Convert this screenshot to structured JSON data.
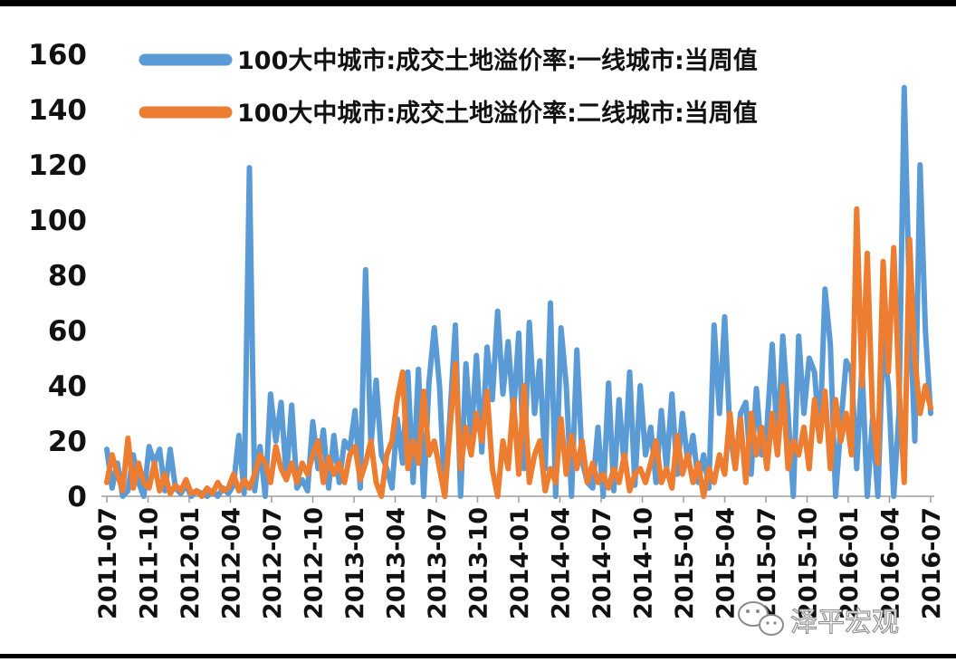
{
  "chart_data": {
    "type": "line",
    "title": "",
    "xlabel": "",
    "ylabel": "",
    "ylim": [
      0,
      160
    ],
    "y_ticks": [
      "0",
      "20",
      "40",
      "60",
      "80",
      "100",
      "120",
      "140",
      "160"
    ],
    "x_tick_labels": [
      "2011-07",
      "2011-10",
      "2012-01",
      "2012-04",
      "2012-07",
      "2012-10",
      "2013-01",
      "2013-04",
      "2013-07",
      "2013-10",
      "2014-01",
      "2014-04",
      "2014-07",
      "2014-10",
      "2015-01",
      "2015-04",
      "2015-07",
      "2015-10",
      "2016-01",
      "2016-04",
      "2016-07"
    ],
    "x_start": "2011-07",
    "x_end": "2016-07",
    "legend_position": "top-left",
    "grid": false,
    "series": [
      {
        "name": "100大中城市:成交土地溢价率:一线城市:当周值",
        "color": "#5b9bd5",
        "points": [
          [
            0,
            17
          ],
          [
            0.5,
            3
          ],
          [
            1,
            12
          ],
          [
            1.5,
            0
          ],
          [
            2,
            2
          ],
          [
            2.5,
            15
          ],
          [
            3,
            5
          ],
          [
            3.5,
            0
          ],
          [
            4,
            18
          ],
          [
            4.5,
            12
          ],
          [
            5,
            17
          ],
          [
            5.5,
            2
          ],
          [
            6,
            17
          ],
          [
            6.5,
            3
          ],
          [
            7,
            1
          ],
          [
            7.5,
            4
          ],
          [
            8,
            0
          ],
          [
            8.5,
            2
          ],
          [
            9,
            1
          ],
          [
            9.5,
            0
          ],
          [
            10,
            2
          ],
          [
            10.5,
            0
          ],
          [
            11,
            3
          ],
          [
            11.5,
            1
          ],
          [
            12,
            4
          ],
          [
            12.5,
            22
          ],
          [
            13,
            1
          ],
          [
            13.5,
            119
          ],
          [
            14,
            2
          ],
          [
            14.5,
            18
          ],
          [
            15,
            0
          ],
          [
            15.5,
            37
          ],
          [
            16,
            20
          ],
          [
            16.5,
            34
          ],
          [
            17,
            7
          ],
          [
            17.5,
            33
          ],
          [
            18,
            3
          ],
          [
            18.5,
            6
          ],
          [
            19,
            2
          ],
          [
            19.5,
            27
          ],
          [
            20,
            10
          ],
          [
            20.5,
            24
          ],
          [
            21,
            3
          ],
          [
            21.5,
            22
          ],
          [
            22,
            5
          ],
          [
            22.5,
            20
          ],
          [
            23,
            17
          ],
          [
            23.5,
            31
          ],
          [
            24,
            3
          ],
          [
            24.5,
            82
          ],
          [
            25,
            18
          ],
          [
            25.5,
            42
          ],
          [
            26,
            15
          ],
          [
            26.5,
            10
          ],
          [
            27,
            3
          ],
          [
            27.5,
            28
          ],
          [
            28,
            12
          ],
          [
            28.5,
            45
          ],
          [
            29,
            5
          ],
          [
            29.5,
            46
          ],
          [
            30,
            0
          ],
          [
            30.5,
            41
          ],
          [
            31,
            61
          ],
          [
            31.5,
            40
          ],
          [
            32,
            0
          ],
          [
            32.5,
            30
          ],
          [
            33,
            62
          ],
          [
            33.5,
            0
          ],
          [
            34,
            48
          ],
          [
            34.5,
            20
          ],
          [
            35,
            51
          ],
          [
            35.5,
            16
          ],
          [
            36,
            54
          ],
          [
            36.5,
            35
          ],
          [
            37,
            67
          ],
          [
            37.5,
            37
          ],
          [
            38,
            56
          ],
          [
            38.5,
            30
          ],
          [
            39,
            59
          ],
          [
            39.5,
            10
          ],
          [
            40,
            63
          ],
          [
            40.5,
            30
          ],
          [
            41,
            49
          ],
          [
            41.5,
            10
          ],
          [
            42,
            70
          ],
          [
            42.5,
            0
          ],
          [
            43,
            61
          ],
          [
            43.5,
            40
          ],
          [
            44,
            0
          ],
          [
            44.5,
            53
          ],
          [
            45,
            13
          ],
          [
            45.5,
            5
          ],
          [
            46,
            3
          ],
          [
            46.5,
            25
          ],
          [
            47,
            0
          ],
          [
            47.5,
            41
          ],
          [
            48,
            2
          ],
          [
            48.5,
            35
          ],
          [
            49,
            10
          ],
          [
            49.5,
            45
          ],
          [
            50,
            4
          ],
          [
            50.5,
            40
          ],
          [
            51,
            15
          ],
          [
            51.5,
            25
          ],
          [
            52,
            5
          ],
          [
            52.5,
            31
          ],
          [
            53,
            10
          ],
          [
            53.5,
            37
          ],
          [
            54,
            8
          ],
          [
            54.5,
            30
          ],
          [
            55,
            12
          ],
          [
            55.5,
            22
          ],
          [
            56,
            5
          ],
          [
            56.5,
            15
          ],
          [
            57,
            3
          ],
          [
            57.5,
            62
          ],
          [
            58,
            30
          ],
          [
            58.5,
            65
          ],
          [
            59,
            23
          ],
          [
            59.5,
            10
          ],
          [
            60,
            30
          ],
          [
            60.5,
            34
          ],
          [
            61,
            8
          ],
          [
            61.5,
            39
          ],
          [
            62,
            15
          ],
          [
            62.5,
            25
          ],
          [
            63,
            55
          ],
          [
            63.5,
            18
          ],
          [
            64,
            58
          ],
          [
            64.5,
            30
          ],
          [
            65,
            0
          ],
          [
            65.5,
            58
          ],
          [
            66,
            30
          ],
          [
            66.5,
            50
          ],
          [
            67,
            45
          ],
          [
            67.5,
            20
          ],
          [
            68,
            75
          ],
          [
            68.5,
            55
          ],
          [
            69,
            0
          ],
          [
            69.5,
            26
          ],
          [
            70,
            49
          ],
          [
            70.5,
            45
          ],
          [
            71,
            10
          ],
          [
            71.5,
            47
          ],
          [
            72,
            0
          ],
          [
            72.5,
            28
          ],
          [
            73,
            0
          ],
          [
            73.5,
            57
          ],
          [
            74,
            40
          ],
          [
            74.5,
            0
          ],
          [
            75,
            30
          ],
          [
            75.5,
            148
          ],
          [
            76,
            70
          ],
          [
            76.5,
            20
          ],
          [
            77,
            120
          ],
          [
            77.5,
            60
          ],
          [
            78,
            30
          ]
        ]
      },
      {
        "name": "100大中城市:成交土地溢价率:二线城市:当周值",
        "color": "#ed7d31",
        "points": [
          [
            0,
            5
          ],
          [
            0.5,
            15
          ],
          [
            1,
            8
          ],
          [
            1.5,
            2
          ],
          [
            2,
            21
          ],
          [
            2.5,
            3
          ],
          [
            3,
            12
          ],
          [
            3.5,
            5
          ],
          [
            4,
            3
          ],
          [
            4.5,
            12
          ],
          [
            5,
            2
          ],
          [
            5.5,
            8
          ],
          [
            6,
            1
          ],
          [
            6.5,
            4
          ],
          [
            7,
            2
          ],
          [
            7.5,
            6
          ],
          [
            8,
            1
          ],
          [
            8.5,
            2
          ],
          [
            9,
            0
          ],
          [
            9.5,
            3
          ],
          [
            10,
            1
          ],
          [
            10.5,
            5
          ],
          [
            11,
            2
          ],
          [
            11.5,
            3
          ],
          [
            12,
            8
          ],
          [
            12.5,
            2
          ],
          [
            13,
            6
          ],
          [
            13.5,
            3
          ],
          [
            14,
            8
          ],
          [
            14.5,
            15
          ],
          [
            15,
            12
          ],
          [
            15.5,
            5
          ],
          [
            16,
            18
          ],
          [
            16.5,
            10
          ],
          [
            17,
            6
          ],
          [
            17.5,
            12
          ],
          [
            18,
            5
          ],
          [
            18.5,
            12
          ],
          [
            19,
            8
          ],
          [
            19.5,
            15
          ],
          [
            20,
            20
          ],
          [
            20.5,
            5
          ],
          [
            21,
            14
          ],
          [
            21.5,
            8
          ],
          [
            22,
            12
          ],
          [
            22.5,
            5
          ],
          [
            23,
            15
          ],
          [
            23.5,
            18
          ],
          [
            24,
            6
          ],
          [
            24.5,
            12
          ],
          [
            25,
            20
          ],
          [
            25.5,
            5
          ],
          [
            26,
            0
          ],
          [
            26.5,
            15
          ],
          [
            27,
            20
          ],
          [
            27.5,
            35
          ],
          [
            28,
            45
          ],
          [
            28.5,
            10
          ],
          [
            29,
            20
          ],
          [
            29.5,
            12
          ],
          [
            30,
            38
          ],
          [
            30.5,
            15
          ],
          [
            31,
            20
          ],
          [
            31.5,
            10
          ],
          [
            32,
            0
          ],
          [
            32.5,
            25
          ],
          [
            33,
            48
          ],
          [
            33.5,
            10
          ],
          [
            34,
            25
          ],
          [
            34.5,
            15
          ],
          [
            35,
            30
          ],
          [
            35.5,
            20
          ],
          [
            36,
            38
          ],
          [
            36.5,
            10
          ],
          [
            37,
            0
          ],
          [
            37.5,
            20
          ],
          [
            38,
            10
          ],
          [
            38.5,
            35
          ],
          [
            39,
            8
          ],
          [
            39.5,
            40
          ],
          [
            40,
            5
          ],
          [
            40.5,
            15
          ],
          [
            41,
            20
          ],
          [
            41.5,
            2
          ],
          [
            42,
            10
          ],
          [
            42.5,
            5
          ],
          [
            43,
            28
          ],
          [
            43.5,
            8
          ],
          [
            44,
            22
          ],
          [
            44.5,
            10
          ],
          [
            45,
            20
          ],
          [
            45.5,
            5
          ],
          [
            46,
            12
          ],
          [
            46.5,
            5
          ],
          [
            47,
            8
          ],
          [
            47.5,
            3
          ],
          [
            48,
            10
          ],
          [
            48.5,
            5
          ],
          [
            49,
            15
          ],
          [
            49.5,
            2
          ],
          [
            50,
            8
          ],
          [
            50.5,
            10
          ],
          [
            51,
            5
          ],
          [
            51.5,
            12
          ],
          [
            52,
            20
          ],
          [
            52.5,
            5
          ],
          [
            53,
            10
          ],
          [
            53.5,
            3
          ],
          [
            54,
            22
          ],
          [
            54.5,
            8
          ],
          [
            55,
            15
          ],
          [
            55.5,
            5
          ],
          [
            56,
            12
          ],
          [
            56.5,
            0
          ],
          [
            57,
            10
          ],
          [
            57.5,
            5
          ],
          [
            58,
            15
          ],
          [
            58.5,
            8
          ],
          [
            59,
            30
          ],
          [
            59.5,
            10
          ],
          [
            60,
            28
          ],
          [
            60.5,
            5
          ],
          [
            61,
            30
          ],
          [
            61.5,
            15
          ],
          [
            62,
            25
          ],
          [
            62.5,
            10
          ],
          [
            63,
            30
          ],
          [
            63.5,
            15
          ],
          [
            64,
            40
          ],
          [
            64.5,
            10
          ],
          [
            65,
            20
          ],
          [
            65.5,
            15
          ],
          [
            66,
            25
          ],
          [
            66.5,
            10
          ],
          [
            67,
            35
          ],
          [
            67.5,
            20
          ],
          [
            68,
            38
          ],
          [
            68.5,
            10
          ],
          [
            69,
            35
          ],
          [
            69.5,
            20
          ],
          [
            70,
            30
          ],
          [
            70.5,
            15
          ],
          [
            71,
            104
          ],
          [
            71.5,
            40
          ],
          [
            72,
            88
          ],
          [
            72.5,
            30
          ],
          [
            73,
            12
          ],
          [
            73.5,
            85
          ],
          [
            74,
            45
          ],
          [
            74.5,
            90
          ],
          [
            75,
            40
          ],
          [
            75.5,
            5
          ],
          [
            76,
            93
          ],
          [
            76.5,
            50
          ],
          [
            77,
            30
          ],
          [
            77.5,
            40
          ],
          [
            78,
            32
          ]
        ]
      }
    ]
  },
  "watermark": {
    "icon": "wechat-icon",
    "text": "泽平宏观"
  }
}
